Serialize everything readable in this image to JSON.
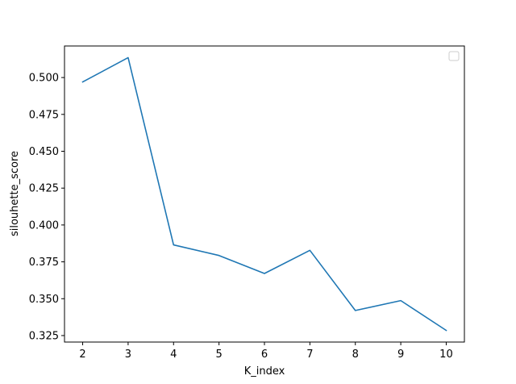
{
  "chart_data": {
    "type": "line",
    "title": "",
    "xlabel": "K_index",
    "ylabel": "silouhette_score",
    "x": [
      2,
      3,
      4,
      5,
      6,
      7,
      8,
      9,
      10
    ],
    "series": [
      {
        "values": [
          0.497,
          0.5135,
          0.3865,
          0.3793,
          0.3671,
          0.3828,
          0.342,
          0.3487,
          0.3285
        ],
        "color": "#1f77b4"
      }
    ],
    "xlim": [
      1.6,
      10.4
    ],
    "ylim": [
      0.3206,
      0.5214
    ],
    "xticks": [
      "2",
      "3",
      "4",
      "5",
      "6",
      "7",
      "8",
      "9",
      "10"
    ],
    "yticks": [
      "0.325",
      "0.350",
      "0.375",
      "0.400",
      "0.425",
      "0.450",
      "0.475",
      "0.500"
    ],
    "grid": false,
    "legend": {
      "placement": "top-right",
      "entries": []
    }
  }
}
